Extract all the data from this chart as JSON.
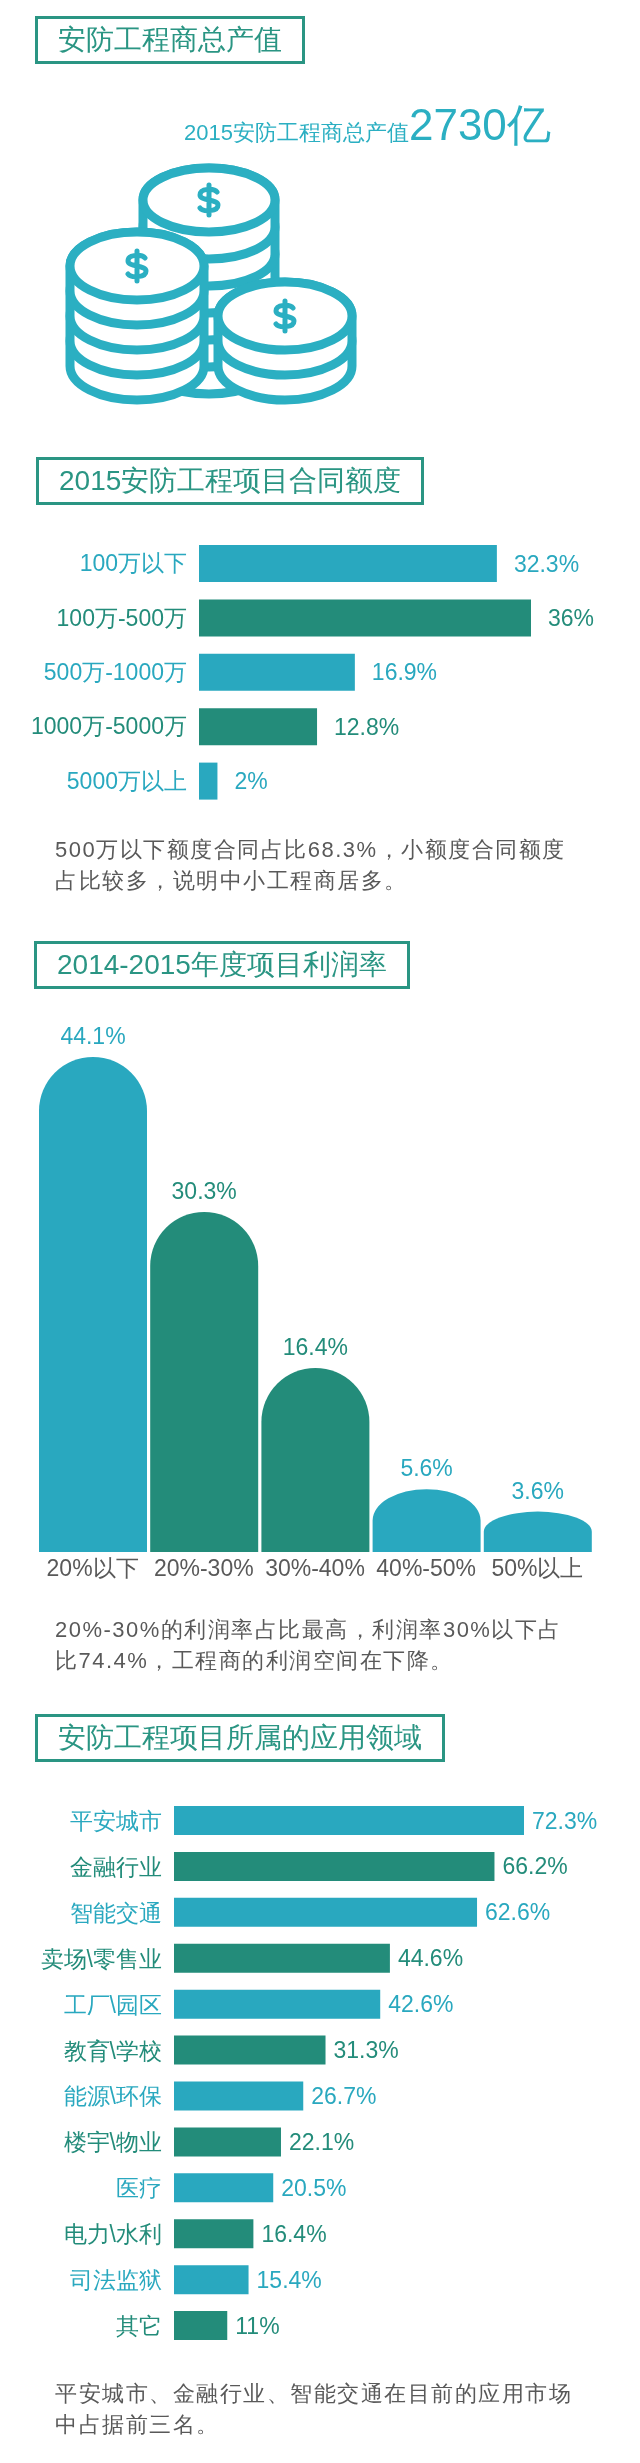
{
  "chart_data": [
    {
      "type": "other",
      "title": "安防工程商总产值",
      "annotations": [
        "2015安防工程商总产值",
        "2730亿"
      ]
    },
    {
      "type": "bar",
      "orientation": "horizontal",
      "title": "2015安防工程项目合同额度",
      "categories": [
        "100万以下",
        "100万-500万",
        "500万-1000万",
        "1000万-5000万",
        "5000万以上"
      ],
      "values": [
        32.3,
        36,
        16.9,
        12.8,
        2
      ],
      "colors": [
        "#29a8bf",
        "#238c7a",
        "#29a8bf",
        "#238c7a",
        "#29a8bf"
      ],
      "value_labels": [
        "32.3%",
        "36%",
        "16.9%",
        "12.8%",
        "2%"
      ],
      "annotations": [
        "500万以下额度合同占比68.3%，小额度合同额度占比较多，说明中小工程商居多。"
      ]
    },
    {
      "type": "bar",
      "title": "2014-2015年度项目利润率",
      "categories": [
        "20%以下",
        "20%-30%",
        "30%-40%",
        "40%-50%",
        "50%以上"
      ],
      "values": [
        44.1,
        30.3,
        16.4,
        5.6,
        3.6
      ],
      "colors": [
        "#29a8bf",
        "#238c7a",
        "#238c7a",
        "#29a8bf",
        "#29a8bf"
      ],
      "value_labels": [
        "44.1%",
        "30.3%",
        "16.4%",
        "5.6%",
        "3.6%"
      ],
      "annotations": [
        "20%-30%的利润率占比最高，利润率30%以下占比74.4%，工程商的利润空间在下降。"
      ]
    },
    {
      "type": "bar",
      "orientation": "horizontal",
      "title": "安防工程项目所属的应用领域",
      "categories": [
        "平安城市",
        "金融行业",
        "智能交通",
        "卖场\\零售业",
        "工厂\\园区",
        "教育\\学校",
        "能源\\环保",
        "楼宇\\物业",
        "医疗",
        "电力\\水利",
        "司法监狱",
        "其它"
      ],
      "values": [
        72.3,
        66.2,
        62.6,
        44.6,
        42.6,
        31.3,
        26.7,
        22.1,
        20.5,
        16.4,
        15.4,
        11
      ],
      "colors": [
        "#29a8bf",
        "#238c7a",
        "#29a8bf",
        "#238c7a",
        "#29a8bf",
        "#238c7a",
        "#29a8bf",
        "#238c7a",
        "#29a8bf",
        "#238c7a",
        "#29a8bf",
        "#238c7a"
      ],
      "value_labels": [
        "72.3%",
        "66.2%",
        "62.6%",
        "44.6%",
        "42.6%",
        "31.3%",
        "26.7%",
        "22.1%",
        "20.5%",
        "16.4%",
        "15.4%",
        "11%"
      ],
      "annotations": [
        "平安城市、金融行业、智能交通在目前的应用市场中占据前三名。"
      ]
    }
  ]
}
